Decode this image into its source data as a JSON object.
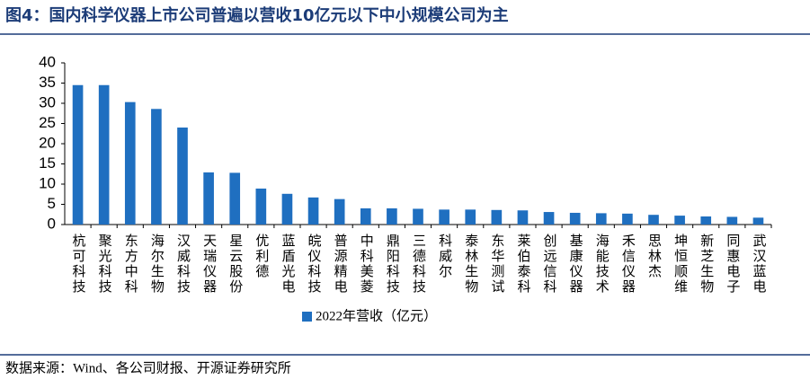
{
  "chart_data": {
    "type": "bar",
    "title": "图4：国内科学仪器上市公司普遍以营收10亿元以下中小规模公司为主",
    "source": "数据来源：Wind、各公司财报、开源证券研究所",
    "categories": [
      "杭可科技",
      "聚光科技",
      "东方中科",
      "海尔生物",
      "汉威科技",
      "天瑞仪器",
      "星云股份",
      "优利德",
      "蓝盾光电",
      "皖仪科技",
      "普源精电",
      "中科美菱",
      "鼎阳科技",
      "三德科技",
      "科威尔",
      "泰林生物",
      "东华测试",
      "莱伯泰科",
      "创远信科",
      "基康仪器",
      "海能技术",
      "禾信仪器",
      "思林杰",
      "坤恒顺维",
      "新芝生物",
      "同惠电子",
      "武汉蓝电"
    ],
    "series": [
      {
        "name": "2022年营收（亿元）",
        "color": "#1f6fc0",
        "values": [
          34.5,
          34.5,
          30.3,
          28.6,
          24.0,
          12.9,
          12.8,
          8.9,
          7.6,
          6.7,
          6.3,
          4.0,
          4.0,
          3.9,
          3.7,
          3.7,
          3.6,
          3.5,
          3.1,
          2.9,
          2.8,
          2.7,
          2.4,
          2.2,
          2.0,
          1.9,
          1.7
        ]
      }
    ],
    "ylim": [
      0,
      40
    ],
    "yticks": [
      0,
      5,
      10,
      15,
      20,
      25,
      30,
      35,
      40
    ],
    "grid": false
  }
}
